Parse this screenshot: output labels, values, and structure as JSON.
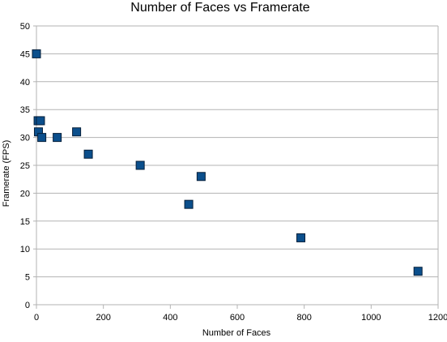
{
  "chart_data": {
    "type": "scatter",
    "title": "Number of Faces vs Framerate",
    "xlabel": "Number of Faces",
    "ylabel": "Framerate (FPS)",
    "xlim": [
      0,
      1200
    ],
    "ylim": [
      0,
      50
    ],
    "x_ticks": [
      0,
      200,
      400,
      600,
      800,
      1000,
      1200
    ],
    "y_ticks": [
      0,
      5,
      10,
      15,
      20,
      25,
      30,
      35,
      40,
      45,
      50
    ],
    "grid": "horizontal",
    "legend": "none",
    "series": [
      {
        "points": [
          {
            "x": 0,
            "y": 45
          },
          {
            "x": 5,
            "y": 33
          },
          {
            "x": 12,
            "y": 33
          },
          {
            "x": 6,
            "y": 31
          },
          {
            "x": 16,
            "y": 30
          },
          {
            "x": 62,
            "y": 30
          },
          {
            "x": 120,
            "y": 31
          },
          {
            "x": 155,
            "y": 27
          },
          {
            "x": 310,
            "y": 25
          },
          {
            "x": 455,
            "y": 18
          },
          {
            "x": 492,
            "y": 23
          },
          {
            "x": 790,
            "y": 12
          },
          {
            "x": 1140,
            "y": 6
          }
        ]
      }
    ]
  },
  "colors": {
    "marker_fill": "#0b4f8c",
    "marker_stroke": "#061f3a",
    "grid": "#b3b3b3",
    "axis": "#b3b3b3"
  }
}
